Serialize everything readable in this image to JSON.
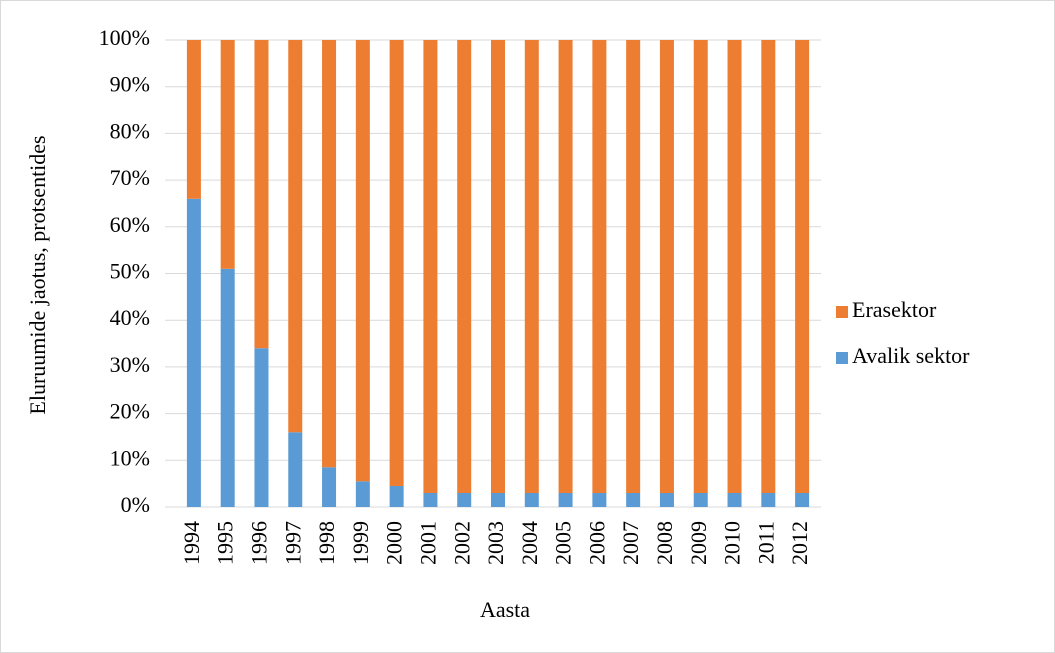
{
  "chart_data": {
    "type": "stacked_bar",
    "x_label": "Aasta",
    "y_label": "Eluruumide jaotus, protsentides",
    "categories": [
      "1994",
      "1995",
      "1996",
      "1997",
      "1998",
      "1999",
      "2000",
      "2001",
      "2002",
      "2003",
      "2004",
      "2005",
      "2006",
      "2007",
      "2008",
      "2009",
      "2010",
      "2011",
      "2012"
    ],
    "series": [
      {
        "name": "Avalik sektor",
        "color": "#5b9bd5",
        "values": [
          66,
          51,
          34,
          16,
          8.5,
          5.5,
          4.5,
          3,
          3,
          3,
          3,
          3,
          3,
          3,
          3,
          3,
          3,
          3,
          3
        ]
      },
      {
        "name": "Erasektor",
        "color": "#ed7d31",
        "values": [
          34,
          49,
          66,
          84,
          91.5,
          94.5,
          95.5,
          97,
          97,
          97,
          97,
          97,
          97,
          97,
          97,
          97,
          97,
          97,
          97
        ]
      }
    ],
    "ylim": [
      0,
      100
    ],
    "yticks": [
      {
        "value": 0,
        "label": "0%"
      },
      {
        "value": 10,
        "label": "10%"
      },
      {
        "value": 20,
        "label": "20%"
      },
      {
        "value": 30,
        "label": "30%"
      },
      {
        "value": 40,
        "label": "40%"
      },
      {
        "value": 50,
        "label": "50%"
      },
      {
        "value": 60,
        "label": "60%"
      },
      {
        "value": 70,
        "label": "70%"
      },
      {
        "value": 80,
        "label": "80%"
      },
      {
        "value": 90,
        "label": "90%"
      },
      {
        "value": 100,
        "label": "100%"
      }
    ],
    "grid": true,
    "legend": "right"
  }
}
